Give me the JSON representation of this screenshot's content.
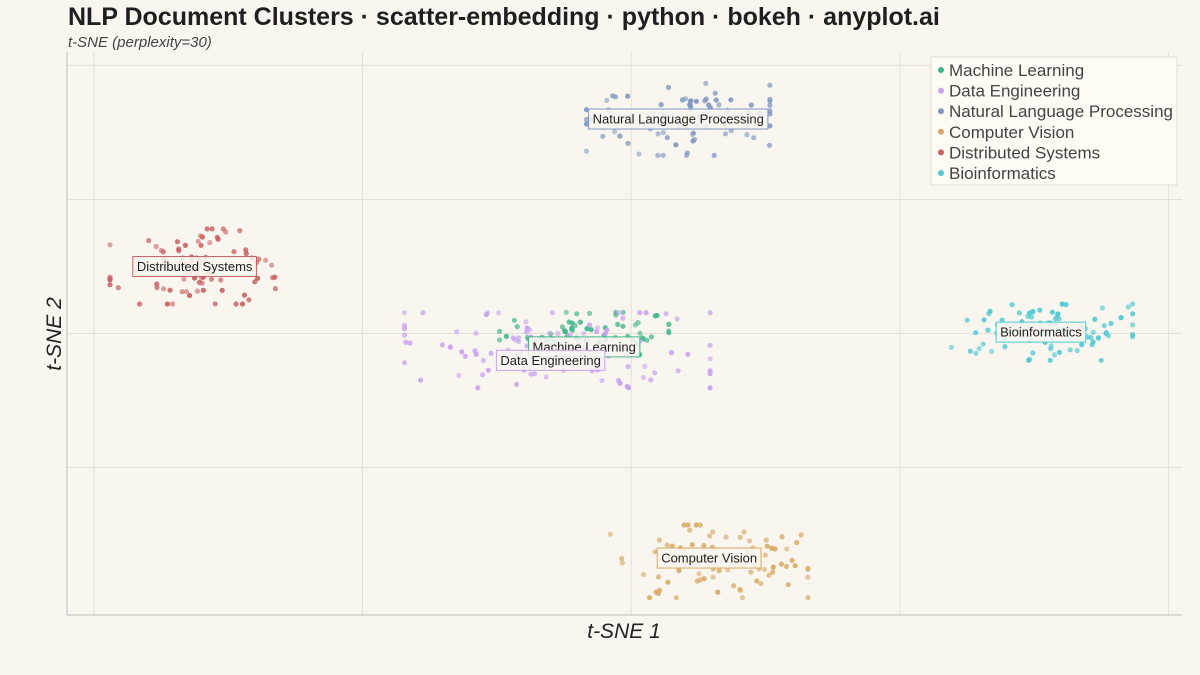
{
  "header": {
    "title": "NLP Document Clusters · scatter-embedding · python · bokeh · anyplot.ai",
    "subtitle": "t-SNE (perplexity=30)"
  },
  "chart_data": {
    "type": "scatter",
    "title": "NLP Document Clusters · scatter-embedding · python · bokeh · anyplot.ai",
    "subtitle": "t-SNE (perplexity=30)",
    "xlabel": "t-SNE 1",
    "ylabel": "t-SNE 2",
    "xlim": [
      -42,
      41
    ],
    "ylim": [
      -42,
      42
    ],
    "grid": true,
    "legend_position": "top-right",
    "series": [
      {
        "name": "Machine Learning",
        "color": "#3fb68b",
        "center": [
          -3.5,
          0
        ],
        "spread": [
          3.6,
          1.8
        ],
        "n": 70,
        "label": "Machine Learning",
        "label_at": [
          -3.5,
          -2
        ]
      },
      {
        "name": "Data Engineering",
        "color": "#c9a0f2",
        "center": [
          -5.5,
          -2.5
        ],
        "spread": [
          6.5,
          3.2
        ],
        "n": 110,
        "label": "Data Engineering",
        "label_at": [
          -6,
          -4
        ]
      },
      {
        "name": "Natural Language Processing",
        "color": "#7f97c2",
        "center": [
          3.5,
          32
        ],
        "spread": [
          3.9,
          3.1
        ],
        "n": 90,
        "label": "Natural Language Processing",
        "label_at": [
          3.5,
          32
        ]
      },
      {
        "name": "Computer Vision",
        "color": "#d9a862",
        "center": [
          5.8,
          -34
        ],
        "spread": [
          4.2,
          3.1
        ],
        "n": 90,
        "label": "Computer Vision",
        "label_at": [
          5.8,
          -33.5
        ]
      },
      {
        "name": "Distributed Systems",
        "color": "#c96262",
        "center": [
          -32.5,
          10
        ],
        "spread": [
          3.6,
          3.2
        ],
        "n": 90,
        "label": "Distributed Systems",
        "label_at": [
          -32.5,
          10
        ]
      },
      {
        "name": "Bioinformatics",
        "color": "#4fc8d2",
        "center": [
          30.5,
          0.2
        ],
        "spread": [
          3.9,
          2.4
        ],
        "n": 90,
        "label": "Bioinformatics",
        "label_at": [
          30.5,
          0.2
        ]
      }
    ]
  }
}
